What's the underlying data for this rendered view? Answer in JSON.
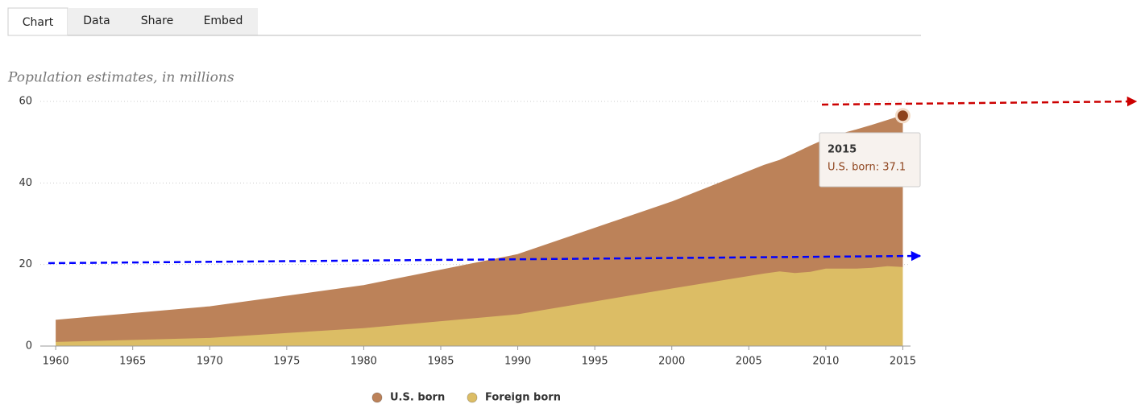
{
  "tabs": [
    "Chart",
    "Data",
    "Share",
    "Embed"
  ],
  "chart_data": {
    "type": "stacked-area",
    "subtitle": "Population estimates, in millions",
    "x": [
      1960,
      1970,
      1980,
      1990,
      2000,
      2006,
      2007,
      2008,
      2009,
      2010,
      2011,
      2012,
      2013,
      2014,
      2015
    ],
    "series": [
      {
        "name": "U.S. born",
        "color": "#bc8259",
        "values": [
          5.3,
          7.6,
          10.4,
          14.6,
          21.2,
          26.5,
          27.2,
          29.3,
          30.8,
          31.7,
          33.0,
          34.0,
          34.9,
          35.7,
          37.1
        ]
      },
      {
        "name": "Foreign born",
        "color": "#dcbd65",
        "values": [
          1.0,
          2.0,
          4.4,
          7.8,
          14.1,
          17.8,
          18.3,
          17.9,
          18.2,
          19.0,
          19.0,
          19.0,
          19.2,
          19.6,
          19.4
        ]
      }
    ],
    "xlim": [
      1959,
      2015.5
    ],
    "xticks": [
      1960,
      1965,
      1970,
      1975,
      1980,
      1985,
      1990,
      1995,
      2000,
      2005,
      2010,
      2015
    ],
    "ylim": [
      0,
      60
    ],
    "yticks": [
      0,
      20,
      40,
      60
    ],
    "grid": true,
    "tooltip": {
      "title": "2015",
      "text": "U.S. born: 37.1"
    }
  }
}
